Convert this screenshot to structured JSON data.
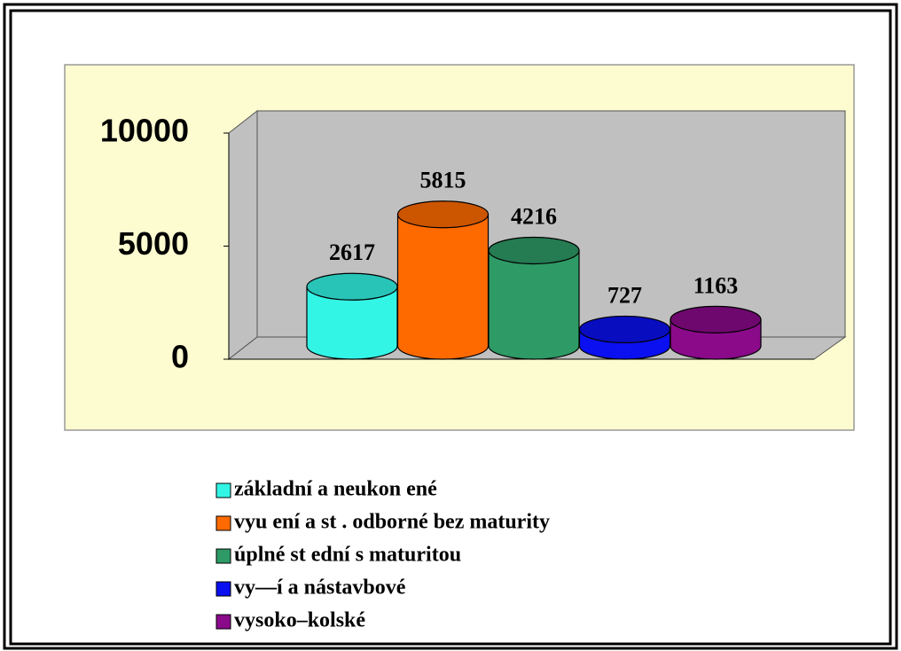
{
  "chart_data": {
    "type": "bar3d",
    "categories": [
      "základní a neukon ené",
      "vyu ení a st . odborné bez maturity",
      "úplné st ední s maturitou",
      "vy—í a nástavbové",
      "vysoko–kolské"
    ],
    "values": [
      2617,
      5815,
      4216,
      727,
      1163
    ],
    "colors": [
      "#33f5e6",
      "#ff6a00",
      "#2e9a66",
      "#0a10f0",
      "#8a0a8a"
    ],
    "ylim": [
      0,
      10000
    ],
    "yticks": [
      0,
      5000,
      10000
    ]
  }
}
